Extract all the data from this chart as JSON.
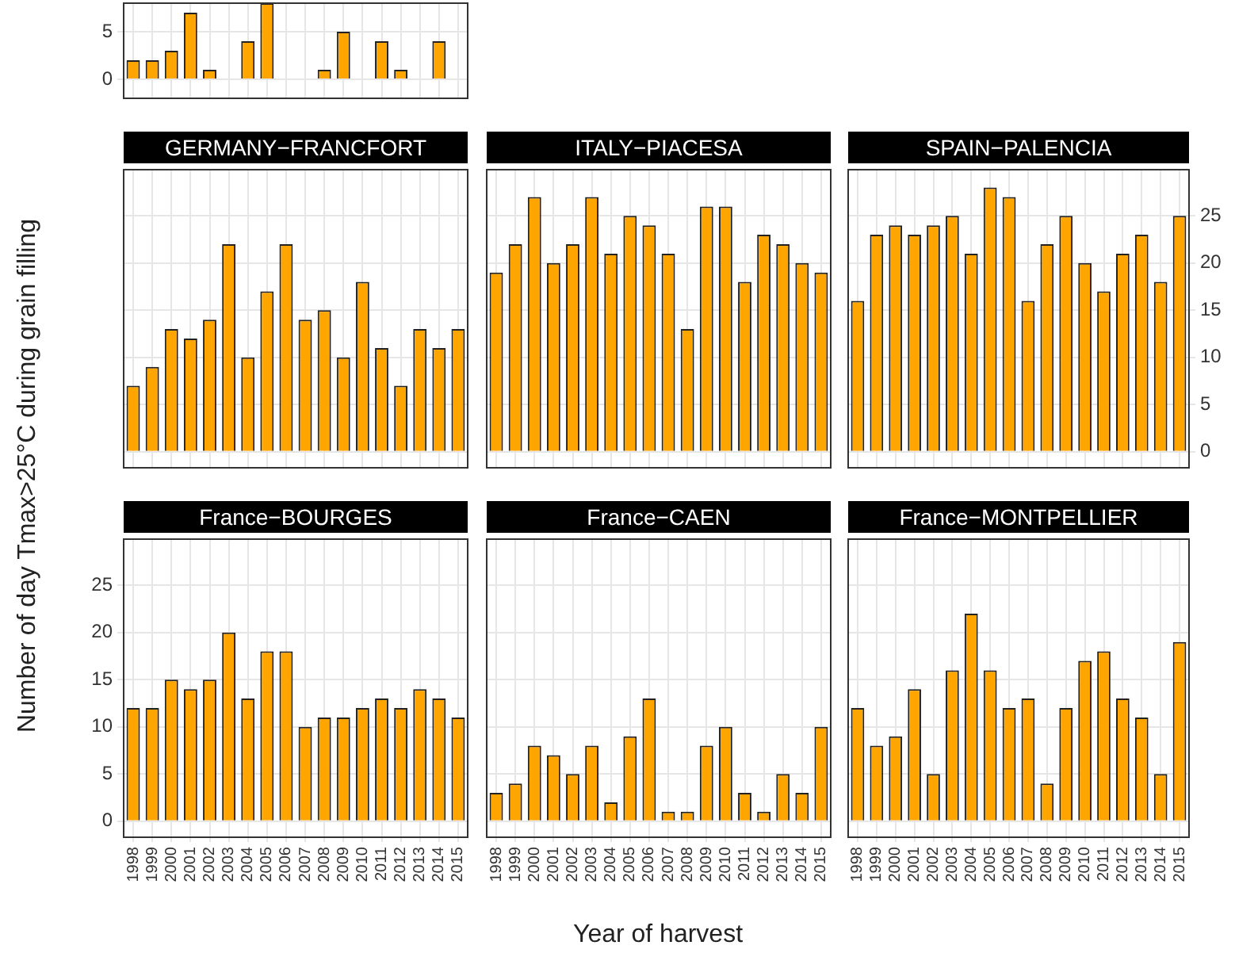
{
  "chart_data": [
    {
      "type": "bar",
      "categories": [
        "1998",
        "1999",
        "2000",
        "2001",
        "2002",
        "2003",
        "2004",
        "2005",
        "2006",
        "2007",
        "2008",
        "2009",
        "2010",
        "2011",
        "2012",
        "2013",
        "2014",
        "2015"
      ],
      "series": [
        {
          "color": "#ffa500",
          "values": [
            2,
            2,
            3,
            7,
            1,
            0,
            4,
            8,
            null,
            0,
            1,
            5,
            null,
            4,
            1,
            null,
            4,
            null
          ]
        }
      ],
      "ylim": [
        -2,
        8
      ],
      "yticks": [
        0,
        5
      ],
      "grid": true,
      "tick_labels": "y",
      "ylabel": "Number of day Tmax>25°C during grain filling"
    },
    {
      "type": "bar",
      "title": "GERMANY−FRANCFORT",
      "categories": [
        "1998",
        "1999",
        "2000",
        "2001",
        "2002",
        "2003",
        "2004",
        "2005",
        "2006",
        "2007",
        "2008",
        "2009",
        "2010",
        "2011",
        "2012",
        "2013",
        "2014",
        "2015"
      ],
      "series": [
        {
          "color": "#ffa500",
          "values": [
            7,
            9,
            13,
            12,
            14,
            22,
            10,
            17,
            22,
            14,
            15,
            10,
            18,
            11,
            7,
            13,
            11,
            13
          ]
        }
      ],
      "ylim": [
        -1.7,
        29.9
      ],
      "yticks": [
        0,
        5,
        10,
        15,
        20,
        25
      ],
      "grid": true,
      "tick_labels": false
    },
    {
      "type": "bar",
      "title": "ITALY−PIACESA",
      "categories": [
        "1998",
        "1999",
        "2000",
        "2001",
        "2002",
        "2003",
        "2004",
        "2005",
        "2006",
        "2007",
        "2008",
        "2009",
        "2010",
        "2011",
        "2012",
        "2013",
        "2014",
        "2015"
      ],
      "series": [
        {
          "color": "#ffa500",
          "values": [
            19,
            22,
            27,
            20,
            22,
            27,
            21,
            25,
            24,
            21,
            13,
            26,
            26,
            18,
            23,
            22,
            20,
            19
          ]
        }
      ],
      "ylim": [
        -1.7,
        29.9
      ],
      "yticks": [
        0,
        5,
        10,
        15,
        20,
        25
      ],
      "grid": true,
      "tick_labels": false
    },
    {
      "type": "bar",
      "title": "SPAIN−PALENCIA",
      "categories": [
        "1998",
        "1999",
        "2000",
        "2001",
        "2002",
        "2003",
        "2004",
        "2005",
        "2006",
        "2007",
        "2008",
        "2009",
        "2010",
        "2011",
        "2012",
        "2013",
        "2014",
        "2015"
      ],
      "series": [
        {
          "color": "#ffa500",
          "axis": "y2",
          "values": [
            16,
            23,
            24,
            23,
            24,
            25,
            21,
            28,
            27,
            16,
            22,
            25,
            20,
            17,
            21,
            23,
            18,
            25
          ]
        }
      ],
      "y2lim": [
        -1.7,
        29.9
      ],
      "y2ticks": [
        0,
        5,
        10,
        15,
        20,
        25
      ],
      "grid": true,
      "tick_labels": "y"
    },
    {
      "type": "bar",
      "title": "France−BOURGES",
      "categories": [
        "1998",
        "1999",
        "2000",
        "2001",
        "2002",
        "2003",
        "2004",
        "2005",
        "2006",
        "2007",
        "2008",
        "2009",
        "2010",
        "2011",
        "2012",
        "2013",
        "2014",
        "2015"
      ],
      "series": [
        {
          "color": "#ffa500",
          "values": [
            12,
            12,
            15,
            14,
            15,
            20,
            13,
            18,
            18,
            10,
            11,
            11,
            12,
            13,
            12,
            14,
            13,
            11
          ]
        }
      ],
      "ylim": [
        -1.7,
        29.9
      ],
      "yticks": [
        0,
        5,
        10,
        15,
        20,
        25
      ],
      "grid": true
    },
    {
      "type": "bar",
      "title": "France−CAEN",
      "categories": [
        "1998",
        "1999",
        "2000",
        "2001",
        "2002",
        "2003",
        "2004",
        "2005",
        "2006",
        "2007",
        "2008",
        "2009",
        "2010",
        "2011",
        "2012",
        "2013",
        "2014",
        "2015"
      ],
      "series": [
        {
          "color": "#ffa500",
          "values": [
            3,
            4,
            8,
            7,
            5,
            8,
            2,
            9,
            13,
            1,
            1,
            8,
            10,
            3,
            1,
            5,
            3,
            10
          ]
        }
      ],
      "ylim": [
        -1.7,
        29.9
      ],
      "yticks": [
        0,
        5,
        10,
        15,
        20,
        25
      ],
      "grid": true,
      "tick_labels": "x",
      "xlabel": "Year of harvest"
    },
    {
      "type": "bar",
      "title": "France−MONTPELLIER",
      "categories": [
        "1998",
        "1999",
        "2000",
        "2001",
        "2002",
        "2003",
        "2004",
        "2005",
        "2006",
        "2007",
        "2008",
        "2009",
        "2010",
        "2011",
        "2012",
        "2013",
        "2014",
        "2015"
      ],
      "series": [
        {
          "color": "#ffa500",
          "values": [
            12,
            8,
            9,
            14,
            5,
            16,
            22,
            16,
            12,
            13,
            4,
            12,
            17,
            18,
            13,
            11,
            5,
            19
          ]
        }
      ],
      "ylim": [
        -1.7,
        29.9
      ],
      "yticks": [
        0,
        5,
        10,
        15,
        20,
        25
      ],
      "grid": true,
      "tick_labels": "x"
    }
  ]
}
